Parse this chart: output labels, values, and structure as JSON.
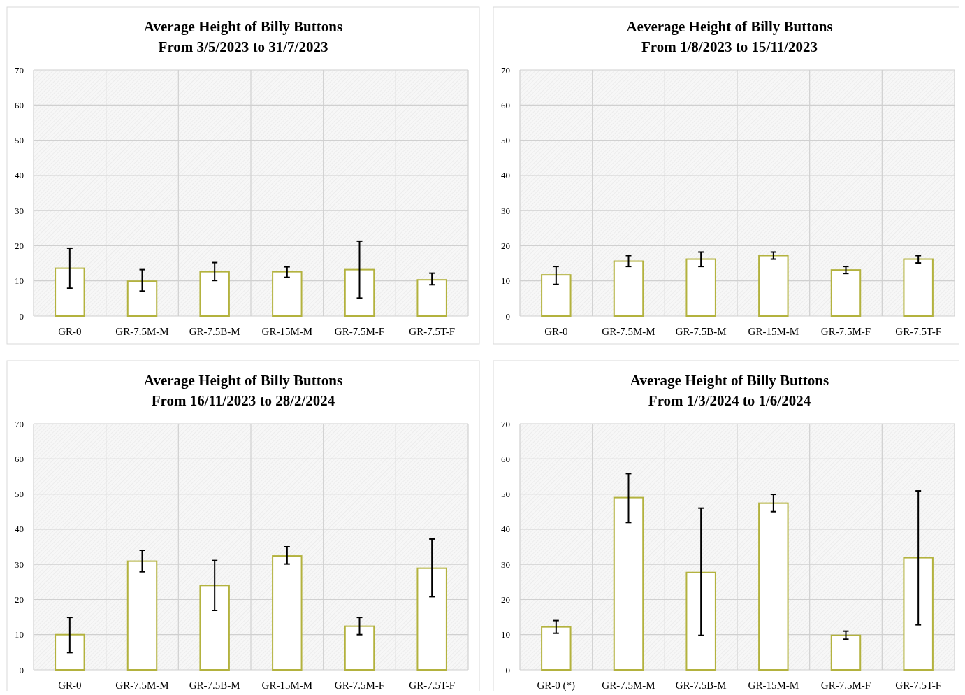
{
  "chart_data": [
    {
      "type": "bar",
      "title": "Average Height of Billy Buttons",
      "subtitle": "From 3/5/2023 to 31/7/2023",
      "categories": [
        "GR-0",
        "GR-7.5M-M",
        "GR-7.5B-M",
        "GR-15M-M",
        "GR-7.5M-F",
        "GR-7.5T-F"
      ],
      "values": [
        13.6,
        9.9,
        12.6,
        12.6,
        13.2,
        10.3
      ],
      "errors": [
        [
          7.9,
          19.3
        ],
        [
          7.1,
          13.2
        ],
        [
          10.1,
          15.2
        ],
        [
          11.0,
          14.0
        ],
        [
          5.1,
          21.3
        ],
        [
          8.9,
          12.2
        ]
      ],
      "color": "#b3b23e",
      "ylim": [
        0,
        70
      ],
      "yticks": [
        0,
        10,
        20,
        30,
        40,
        50,
        60,
        70
      ],
      "grid": true
    },
    {
      "type": "bar",
      "title": "Aeverage Height of Billy Buttons",
      "subtitle": "From 1/8/2023 to 15/11/2023",
      "categories": [
        "GR-0",
        "GR-7.5M-M",
        "GR-7.5B-M",
        "GR-15M-M",
        "GR-7.5M-F",
        "GR-7.5T-F"
      ],
      "values": [
        11.7,
        15.6,
        16.2,
        17.2,
        13.1,
        16.2
      ],
      "errors": [
        [
          9.0,
          14.1
        ],
        [
          14.1,
          17.2
        ],
        [
          14.1,
          18.2
        ],
        [
          16.2,
          18.2
        ],
        [
          12.1,
          14.1
        ],
        [
          15.1,
          17.2
        ]
      ],
      "color": "#b3b23e",
      "ylim": [
        0,
        70
      ],
      "yticks": [
        0,
        10,
        20,
        30,
        40,
        50,
        60,
        70
      ],
      "grid": true
    },
    {
      "type": "bar",
      "title": "Average Height of Billy Buttons",
      "subtitle": "From 16/11/2023 to 28/2/2024",
      "categories": [
        "GR-0",
        "GR-7.5M-M",
        "GR-7.5B-M",
        "GR-15M-M",
        "GR-7.5M-F",
        "GR-7.5T-F"
      ],
      "values": [
        10.0,
        30.9,
        24.0,
        32.4,
        12.4,
        28.9
      ],
      "errors": [
        [
          4.9,
          14.9
        ],
        [
          27.9,
          34.0
        ],
        [
          16.9,
          31.1
        ],
        [
          30.1,
          35.0
        ],
        [
          10.0,
          14.9
        ],
        [
          20.8,
          37.2
        ]
      ],
      "color": "#b3b23e",
      "ylim": [
        0,
        70
      ],
      "yticks": [
        0,
        10,
        20,
        30,
        40,
        50,
        60,
        70
      ],
      "grid": true
    },
    {
      "type": "bar",
      "title": "Average Height of Billy Buttons",
      "subtitle": "From 1/3/2024 to 1/6/2024",
      "categories": [
        "GR-0 (*)",
        "GR-7.5M-M",
        "GR-7.5B-M",
        "GR-15M-M",
        "GR-7.5M-F",
        "GR-7.5T-F"
      ],
      "values": [
        12.2,
        49.0,
        27.7,
        47.4,
        9.8,
        31.9
      ],
      "errors": [
        [
          10.4,
          14.0
        ],
        [
          41.9,
          55.8
        ],
        [
          9.8,
          46.0
        ],
        [
          45.0,
          49.9
        ],
        [
          8.7,
          11.0
        ],
        [
          12.8,
          50.9
        ]
      ],
      "color": "#b3b23e",
      "ylim": [
        0,
        70
      ],
      "yticks": [
        0,
        10,
        20,
        30,
        40,
        50,
        60,
        70
      ],
      "grid": true
    }
  ]
}
